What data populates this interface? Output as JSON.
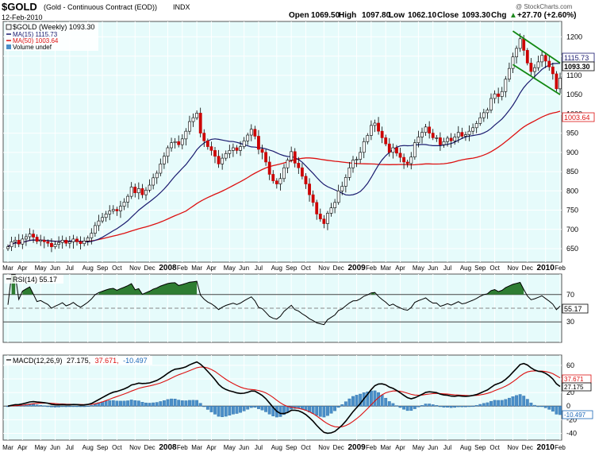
{
  "header": {
    "symbol": "$GOLD",
    "description": "(Gold - Continuous Contract (EOD))",
    "exchange": "INDX",
    "date": "12-Feb-2010",
    "open_label": "Open",
    "open": "1069.50",
    "high_label": "High",
    "high": "1097.80",
    "low_label": "Low",
    "low": "1062.10",
    "close_label": "Close",
    "close": "1093.30",
    "chg_label": "Chg",
    "chg": "+27.70 (+2.60%)",
    "chg_arrow": "▲",
    "watermark": "@ StockCharts.com"
  },
  "legend": {
    "price": "$GOLD (Weekly) 1093.30",
    "ma15": "MA(15) 1115.73",
    "ma50": "MA(50) 1003.64",
    "volume": "Volume undef"
  },
  "rsi_legend": "RSI(14) 55.17",
  "macd_legend": {
    "name": "MACD(12,26,9)",
    "macd": "27.175,",
    "signal": "37.671,",
    "hist": "-10.497"
  },
  "value_tags": {
    "ma15": "1115.73",
    "close": "1093.30",
    "ma50": "1003.64",
    "rsi": "55.17",
    "macd_signal": "37.671",
    "macd": "27.175",
    "hist": "-10.497"
  },
  "colors": {
    "panel_bg": "#e6fbfb",
    "up_candle": "#ffffff",
    "down_candle": "#cc0000",
    "ma15": "#1a1a6e",
    "ma50": "#dd1111",
    "channel": "#118811",
    "rsi_fill": "#2e7d32",
    "hist": "#4a8ec8",
    "signal": "#dd1111"
  },
  "chart_data": {
    "type": "candlestick",
    "x_start": "2007-03-02",
    "x_step_days": 7,
    "y_ticks": [
      650,
      700,
      750,
      800,
      850,
      900,
      950,
      1000,
      1050,
      1100,
      1150,
      1200
    ],
    "ylim": [
      615,
      1240
    ],
    "x_tick_labels": [
      {
        "label": "Mar",
        "week": 0
      },
      {
        "label": "Apr",
        "week": 4
      },
      {
        "label": "May",
        "week": 9
      },
      {
        "label": "Jun",
        "week": 13
      },
      {
        "label": "Jul",
        "week": 17
      },
      {
        "label": "Aug",
        "week": 22
      },
      {
        "label": "Sep",
        "week": 26
      },
      {
        "label": "Oct",
        "week": 30
      },
      {
        "label": "Nov",
        "week": 35
      },
      {
        "label": "Dec",
        "week": 39
      },
      {
        "label": "2008",
        "week": 44,
        "bold": true
      },
      {
        "label": "Feb",
        "week": 48
      },
      {
        "label": "Mar",
        "week": 52
      },
      {
        "label": "Apr",
        "week": 56
      },
      {
        "label": "May",
        "week": 61
      },
      {
        "label": "Jun",
        "week": 65
      },
      {
        "label": "Jul",
        "week": 69
      },
      {
        "label": "Aug",
        "week": 74
      },
      {
        "label": "Sep",
        "week": 78
      },
      {
        "label": "Oct",
        "week": 82
      },
      {
        "label": "Nov",
        "week": 87
      },
      {
        "label": "Dec",
        "week": 91
      },
      {
        "label": "2009",
        "week": 96,
        "bold": true
      },
      {
        "label": "Feb",
        "week": 100
      },
      {
        "label": "Mar",
        "week": 104
      },
      {
        "label": "Apr",
        "week": 108
      },
      {
        "label": "May",
        "week": 113
      },
      {
        "label": "Jun",
        "week": 117
      },
      {
        "label": "Jul",
        "week": 121
      },
      {
        "label": "Aug",
        "week": 126
      },
      {
        "label": "Sep",
        "week": 130
      },
      {
        "label": "Oct",
        "week": 134
      },
      {
        "label": "Nov",
        "week": 139
      },
      {
        "label": "Dec",
        "week": 143
      },
      {
        "label": "2010",
        "week": 148,
        "bold": true
      },
      {
        "label": "Feb",
        "week": 152
      }
    ],
    "close": [
      655,
      668,
      672,
      662,
      675,
      681,
      688,
      680,
      669,
      672,
      668,
      664,
      655,
      661,
      666,
      672,
      664,
      668,
      675,
      668,
      663,
      670,
      678,
      690,
      710,
      722,
      731,
      740,
      748,
      752,
      748,
      760,
      771,
      786,
      810,
      795,
      806,
      790,
      802,
      815,
      834,
      846,
      870,
      890,
      912,
      925,
      928,
      920,
      935,
      955,
      980,
      990,
      1002,
      950,
      930,
      915,
      905,
      890,
      870,
      885,
      897,
      905,
      912,
      905,
      915,
      930,
      945,
      960,
      942,
      908,
      900,
      875,
      843,
      826,
      818,
      832,
      860,
      880,
      902,
      872,
      860,
      838,
      818,
      790,
      770,
      740,
      727,
      715,
      742,
      756,
      770,
      800,
      812,
      835,
      860,
      880,
      882,
      900,
      928,
      944,
      970,
      976,
      955,
      938,
      922,
      900,
      912,
      898,
      887,
      875,
      871,
      888,
      925,
      940,
      952,
      966,
      950,
      938,
      938,
      920,
      928,
      937,
      930,
      940,
      952,
      942,
      946,
      955,
      964,
      975,
      990,
      1003,
      1010,
      1040,
      1052,
      1045,
      1058,
      1090,
      1118,
      1148,
      1170,
      1195,
      1165,
      1132,
      1110,
      1120,
      1135,
      1152,
      1137,
      1122,
      1104,
      1065,
      1093
    ]
  }
}
